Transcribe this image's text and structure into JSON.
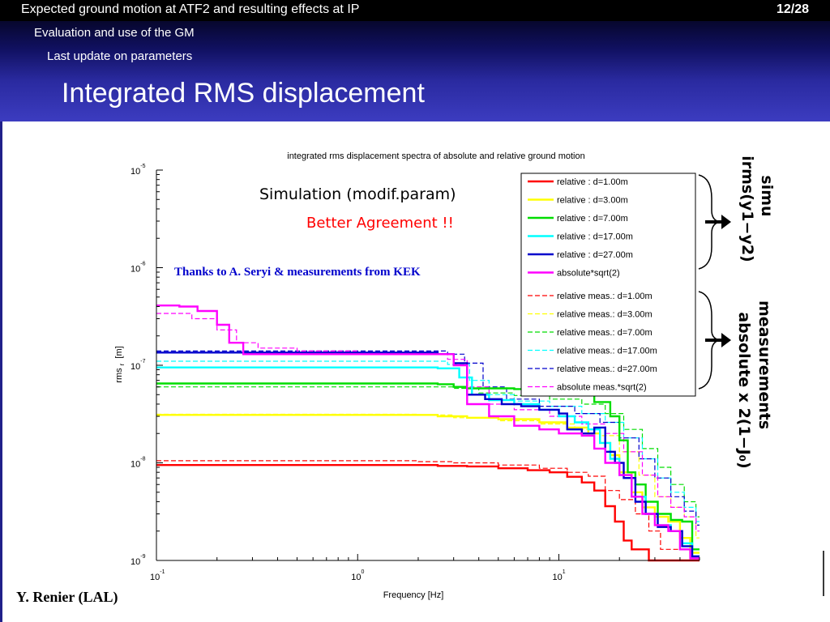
{
  "header": {
    "crumb1": "Expected ground motion at ATF2 and resulting effects at IP",
    "crumb2": "Evaluation and use of the GM",
    "crumb3": "Last update on parameters",
    "page": "12/28",
    "title": "Integrated RMS displacement"
  },
  "annotations": {
    "simulation": "Simulation (modif.param)",
    "agreement": "Better Agreement !!",
    "thanks": "Thanks to A. Seryi & measurements from KEK",
    "simu_label": "simu",
    "simu_formula": "irms(y1−y2)",
    "meas_label": "measurements",
    "meas_formula": "absolute x 2(1−J₀)"
  },
  "author": "Y. Renier (LAL)",
  "colors": {
    "d1": "#ff0000",
    "d3": "#ffff00",
    "d7": "#00dd00",
    "d17": "#00ffff",
    "d27": "#0000cc",
    "abs": "#ff00ff"
  },
  "chart_data": {
    "type": "line",
    "title": "integrated rms displacement spectra of absolute and relative ground motion",
    "xlabel": "Frequency [Hz]",
    "ylabel": "rms",
    "ylabel_sub": "r",
    "ylabel_unit": "[m]",
    "xscale": "log",
    "yscale": "log",
    "xlim": [
      0.1,
      50
    ],
    "ylim": [
      1e-09,
      1e-05
    ],
    "xticks": [
      {
        "value": 0.1,
        "base": "10",
        "exp": "-1"
      },
      {
        "value": 1,
        "base": "10",
        "exp": "0"
      },
      {
        "value": 10,
        "base": "10",
        "exp": "1"
      }
    ],
    "yticks": [
      {
        "value": 1e-09,
        "base": "10",
        "exp": "-9"
      },
      {
        "value": 1e-08,
        "base": "10",
        "exp": "-8"
      },
      {
        "value": 1e-07,
        "base": "10",
        "exp": "-7"
      },
      {
        "value": 1e-06,
        "base": "10",
        "exp": "-6"
      },
      {
        "value": 1e-05,
        "base": "10",
        "exp": "-5"
      }
    ],
    "legend_position": "top-right",
    "series": [
      {
        "name": "relative : d=1.00m",
        "color": "#ff0000",
        "dash": false,
        "points": [
          [
            0.1,
            9.5e-09
          ],
          [
            2.5,
            9.3e-09
          ],
          [
            3.5,
            9.2e-09
          ],
          [
            5.0,
            8.8e-09
          ],
          [
            7.0,
            8.4e-09
          ],
          [
            9.0,
            8e-09
          ],
          [
            11,
            7.2e-09
          ],
          [
            13,
            6.3e-09
          ],
          [
            15,
            5.2e-09
          ],
          [
            17,
            3.6e-09
          ],
          [
            19,
            2.5e-09
          ],
          [
            21,
            1.6e-09
          ],
          [
            23,
            1.3e-09
          ],
          [
            26,
            1.3e-09
          ],
          [
            28,
            1e-09
          ]
        ]
      },
      {
        "name": "relative : d=3.00m",
        "color": "#ffff00",
        "dash": false,
        "points": [
          [
            0.1,
            3.1e-08
          ],
          [
            2.5,
            3e-08
          ],
          [
            3.5,
            2.9e-08
          ],
          [
            5.0,
            2.8e-08
          ],
          [
            8.0,
            2.6e-08
          ],
          [
            11,
            2.3e-08
          ],
          [
            14,
            2e-08
          ],
          [
            16,
            1.6e-08
          ],
          [
            18,
            1.2e-08
          ],
          [
            20,
            8e-09
          ],
          [
            23,
            5e-09
          ],
          [
            26,
            3.5e-09
          ],
          [
            30,
            2.8e-09
          ],
          [
            35,
            2.5e-09
          ],
          [
            40,
            1.7e-09
          ],
          [
            45,
            1.2e-09
          ]
        ]
      },
      {
        "name": "relative : d=7.00m",
        "color": "#00dd00",
        "dash": false,
        "points": [
          [
            0.1,
            6.5e-08
          ],
          [
            2.5,
            6.4e-08
          ],
          [
            3.0,
            6e-08
          ],
          [
            3.5,
            5.8e-08
          ],
          [
            6,
            5.7e-08
          ],
          [
            9,
            5.6e-08
          ],
          [
            12,
            5e-08
          ],
          [
            15,
            4.2e-08
          ],
          [
            18,
            3e-08
          ],
          [
            20,
            1.7e-08
          ],
          [
            22,
            8e-09
          ],
          [
            24,
            6e-09
          ],
          [
            27,
            4e-09
          ],
          [
            31,
            3e-09
          ],
          [
            36,
            2.6e-09
          ],
          [
            41,
            2.5e-09
          ],
          [
            46,
            1.3e-09
          ]
        ]
      },
      {
        "name": "relative : d=17.00m",
        "color": "#00ffff",
        "dash": false,
        "points": [
          [
            0.1,
            9.5e-08
          ],
          [
            2.5,
            9.3e-08
          ],
          [
            3.2,
            7.5e-08
          ],
          [
            3.7,
            5e-08
          ],
          [
            4.5,
            4.4e-08
          ],
          [
            6,
            4e-08
          ],
          [
            8,
            3.5e-08
          ],
          [
            10,
            3e-08
          ],
          [
            12,
            2.6e-08
          ],
          [
            14,
            2.2e-08
          ],
          [
            16,
            1.6e-08
          ],
          [
            18,
            1.1e-08
          ],
          [
            20,
            7.5e-09
          ],
          [
            23,
            4.5e-09
          ],
          [
            27,
            3e-09
          ],
          [
            31,
            2.3e-09
          ],
          [
            36,
            2e-09
          ],
          [
            41,
            1.5e-09
          ],
          [
            46,
            1.1e-09
          ],
          [
            50,
            1.1e-09
          ]
        ]
      },
      {
        "name": "relative : d=27.00m",
        "color": "#0000cc",
        "dash": false,
        "points": [
          [
            0.1,
            1.35e-07
          ],
          [
            2.5,
            1.3e-07
          ],
          [
            3.0,
            1.05e-07
          ],
          [
            3.5,
            5e-08
          ],
          [
            4.3,
            4.5e-08
          ],
          [
            5.2,
            4e-08
          ],
          [
            6.5,
            3.8e-08
          ],
          [
            8,
            3.5e-08
          ],
          [
            10,
            3.2e-08
          ],
          [
            11,
            2.2e-08
          ],
          [
            13,
            2e-08
          ],
          [
            15,
            2.3e-08
          ],
          [
            17,
            1.3e-08
          ],
          [
            19,
            1e-08
          ],
          [
            21,
            7e-09
          ],
          [
            24,
            4e-09
          ],
          [
            27,
            3e-09
          ],
          [
            31,
            2.2e-09
          ],
          [
            36,
            2e-09
          ],
          [
            41,
            1.4e-09
          ],
          [
            46,
            1.1e-09
          ],
          [
            50,
            1.1e-09
          ]
        ]
      },
      {
        "name": "absolute*sqrt(2)",
        "color": "#ff00ff",
        "dash": false,
        "points": [
          [
            0.1,
            4.1e-07
          ],
          [
            0.13,
            4e-07
          ],
          [
            0.16,
            3.6e-07
          ],
          [
            0.2,
            2.6e-07
          ],
          [
            0.23,
            1.7e-07
          ],
          [
            0.27,
            1.3e-07
          ],
          [
            0.5,
            1.3e-07
          ],
          [
            2.5,
            1.3e-07
          ],
          [
            3.0,
            1e-07
          ],
          [
            3.5,
            4e-08
          ],
          [
            4.5,
            3e-08
          ],
          [
            6,
            2.4e-08
          ],
          [
            8,
            2.2e-08
          ],
          [
            10,
            2e-08
          ],
          [
            13,
            1.9e-08
          ],
          [
            15,
            1.4e-08
          ],
          [
            17,
            1e-08
          ],
          [
            20,
            7.5e-09
          ],
          [
            23,
            4.5e-09
          ],
          [
            26,
            3e-09
          ],
          [
            30,
            2.3e-09
          ],
          [
            35,
            2e-09
          ],
          [
            40,
            1.3e-09
          ],
          [
            45,
            1.05e-09
          ],
          [
            50,
            1.05e-09
          ]
        ]
      },
      {
        "name": "relative meas.: d=1.00m",
        "color": "#ff0000",
        "dash": true,
        "points": [
          [
            0.1,
            1.05e-08
          ],
          [
            1.0,
            1.05e-08
          ],
          [
            2.0,
            1.03e-08
          ],
          [
            3.0,
            1e-08
          ],
          [
            5,
            9.5e-09
          ],
          [
            8,
            8.8e-09
          ],
          [
            11,
            8e-09
          ],
          [
            14,
            7.3e-09
          ],
          [
            17,
            5.2e-09
          ],
          [
            20,
            4.2e-09
          ],
          [
            24,
            3e-09
          ],
          [
            28,
            2e-09
          ],
          [
            32,
            1.3e-09
          ]
        ]
      },
      {
        "name": "relative meas.: d=3.00m",
        "color": "#ffff00",
        "dash": true,
        "points": [
          [
            0.1,
            3.15e-08
          ],
          [
            2.0,
            3.1e-08
          ],
          [
            3.0,
            2.9e-08
          ],
          [
            5,
            2.7e-08
          ],
          [
            8,
            2.5e-08
          ],
          [
            12,
            2.2e-08
          ],
          [
            16,
            1.9e-08
          ],
          [
            20,
            1.3e-08
          ],
          [
            25,
            7.5e-09
          ],
          [
            30,
            4.5e-09
          ],
          [
            36,
            3.5e-09
          ],
          [
            42,
            2.8e-09
          ],
          [
            48,
            1.7e-09
          ]
        ]
      },
      {
        "name": "relative meas.: d=7.00m",
        "color": "#00dd00",
        "dash": true,
        "points": [
          [
            0.1,
            6e-08
          ],
          [
            2.0,
            6e-08
          ],
          [
            3.0,
            5.8e-08
          ],
          [
            4,
            5.2e-08
          ],
          [
            6,
            4.9e-08
          ],
          [
            9,
            4.5e-08
          ],
          [
            13,
            4e-08
          ],
          [
            17,
            3.2e-08
          ],
          [
            21,
            2.2e-08
          ],
          [
            26,
            1.4e-08
          ],
          [
            31,
            9e-09
          ],
          [
            36,
            6e-09
          ],
          [
            42,
            4e-09
          ],
          [
            48,
            2.8e-09
          ]
        ]
      },
      {
        "name": "relative meas.: d=17.00m",
        "color": "#00ffff",
        "dash": true,
        "points": [
          [
            0.1,
            1.1e-07
          ],
          [
            2.0,
            1.1e-07
          ],
          [
            2.8,
            1.02e-07
          ],
          [
            3.6,
            7e-08
          ],
          [
            4.5,
            5e-08
          ],
          [
            6,
            4.3e-08
          ],
          [
            9,
            3.8e-08
          ],
          [
            13,
            3.2e-08
          ],
          [
            17,
            2.6e-08
          ],
          [
            21,
            1.8e-08
          ],
          [
            26,
            1.1e-08
          ],
          [
            31,
            7e-09
          ],
          [
            36,
            5e-09
          ],
          [
            42,
            3.5e-09
          ],
          [
            48,
            2.5e-09
          ]
        ]
      },
      {
        "name": "relative meas.: d=27.00m",
        "color": "#0000cc",
        "dash": true,
        "points": [
          [
            0.1,
            1.4e-07
          ],
          [
            2.0,
            1.4e-07
          ],
          [
            2.8,
            1.3e-07
          ],
          [
            3.4,
            1.05e-07
          ],
          [
            4.2,
            6e-08
          ],
          [
            5.5,
            4.5e-08
          ],
          [
            8,
            3.8e-08
          ],
          [
            12,
            3.2e-08
          ],
          [
            16,
            2.6e-08
          ],
          [
            20,
            1.8e-08
          ],
          [
            25,
            1.1e-08
          ],
          [
            30,
            7e-09
          ],
          [
            36,
            4.5e-09
          ],
          [
            42,
            3.2e-09
          ],
          [
            48,
            2.3e-09
          ]
        ]
      },
      {
        "name": "absolute meas.*sqrt(2)",
        "color": "#ff00ff",
        "dash": true,
        "points": [
          [
            0.1,
            3.4e-07
          ],
          [
            0.15,
            3e-07
          ],
          [
            0.2,
            2.3e-07
          ],
          [
            0.25,
            1.7e-07
          ],
          [
            0.32,
            1.5e-07
          ],
          [
            0.5,
            1.4e-07
          ],
          [
            1.0,
            1.35e-07
          ],
          [
            2.0,
            1.3e-07
          ],
          [
            2.8,
            1.15e-07
          ],
          [
            3.5,
            6e-08
          ],
          [
            4.5,
            4e-08
          ],
          [
            6,
            3.5e-08
          ],
          [
            9,
            3e-08
          ],
          [
            13,
            2.5e-08
          ],
          [
            17,
            2e-08
          ],
          [
            21,
            1.3e-08
          ],
          [
            26,
            7.5e-09
          ],
          [
            31,
            4.5e-09
          ],
          [
            36,
            3.5e-09
          ],
          [
            42,
            2.8e-09
          ],
          [
            48,
            2e-09
          ]
        ]
      }
    ]
  }
}
